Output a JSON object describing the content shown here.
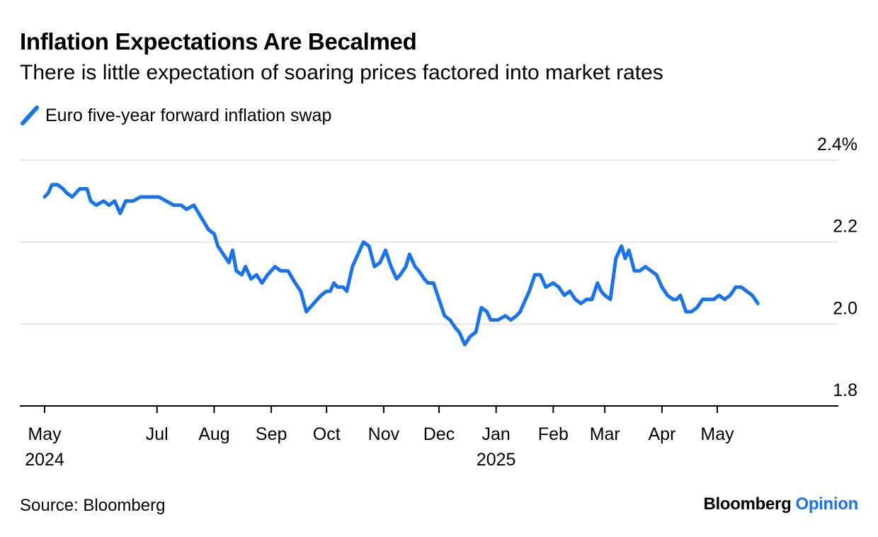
{
  "header": {
    "title": "Inflation Expectations Are Becalmed",
    "subtitle": "There is little expectation of soaring prices factored into market rates"
  },
  "footer": {
    "source": "Source: Bloomberg",
    "brand_primary": "Bloomberg",
    "brand_secondary": "Opinion"
  },
  "colors": {
    "series": "#1a73e8",
    "grid": "#e6e6e6",
    "axis": "#000000"
  },
  "chart_data": {
    "type": "line",
    "title": "Inflation Expectations Are Becalmed",
    "subtitle": "There is little expectation of soaring prices factored into market rates",
    "xlabel": "",
    "ylabel": "",
    "ylim": [
      1.8,
      2.4
    ],
    "y_ticks": [
      {
        "value": 2.4,
        "label": "2.4%"
      },
      {
        "value": 2.2,
        "label": "2.2"
      },
      {
        "value": 2.0,
        "label": "2.0"
      },
      {
        "value": 1.8,
        "label": "1.8"
      }
    ],
    "x_ticks": [
      {
        "date": "2024-05-01",
        "label": "May",
        "year": "2024"
      },
      {
        "date": "2024-07-01",
        "label": "Jul",
        "year": ""
      },
      {
        "date": "2024-08-01",
        "label": "Aug",
        "year": ""
      },
      {
        "date": "2024-09-01",
        "label": "Sep",
        "year": ""
      },
      {
        "date": "2024-10-01",
        "label": "Oct",
        "year": ""
      },
      {
        "date": "2024-11-01",
        "label": "Nov",
        "year": ""
      },
      {
        "date": "2024-12-01",
        "label": "Dec",
        "year": ""
      },
      {
        "date": "2025-01-01",
        "label": "Jan",
        "year": "2025"
      },
      {
        "date": "2025-02-01",
        "label": "Feb",
        "year": ""
      },
      {
        "date": "2025-03-01",
        "label": "Mar",
        "year": ""
      },
      {
        "date": "2025-04-01",
        "label": "Apr",
        "year": ""
      },
      {
        "date": "2025-05-01",
        "label": "May",
        "year": ""
      }
    ],
    "grid": true,
    "legend_position": "top-left",
    "series": [
      {
        "name": "Euro five-year forward inflation swap",
        "color": "#1a73e8",
        "points": [
          [
            "2024-05-01",
            2.31
          ],
          [
            "2024-05-03",
            2.32
          ],
          [
            "2024-05-05",
            2.34
          ],
          [
            "2024-05-08",
            2.34
          ],
          [
            "2024-05-11",
            2.33
          ],
          [
            "2024-05-13",
            2.32
          ],
          [
            "2024-05-16",
            2.31
          ],
          [
            "2024-05-20",
            2.33
          ],
          [
            "2024-05-24",
            2.33
          ],
          [
            "2024-05-26",
            2.3
          ],
          [
            "2024-05-29",
            2.29
          ],
          [
            "2024-06-02",
            2.3
          ],
          [
            "2024-06-05",
            2.29
          ],
          [
            "2024-06-08",
            2.3
          ],
          [
            "2024-06-11",
            2.27
          ],
          [
            "2024-06-14",
            2.3
          ],
          [
            "2024-06-18",
            2.3
          ],
          [
            "2024-06-22",
            2.31
          ],
          [
            "2024-06-27",
            2.31
          ],
          [
            "2024-07-02",
            2.31
          ],
          [
            "2024-07-06",
            2.3
          ],
          [
            "2024-07-10",
            2.29
          ],
          [
            "2024-07-14",
            2.29
          ],
          [
            "2024-07-17",
            2.28
          ],
          [
            "2024-07-21",
            2.29
          ],
          [
            "2024-07-25",
            2.26
          ],
          [
            "2024-07-29",
            2.23
          ],
          [
            "2024-08-01",
            2.22
          ],
          [
            "2024-08-03",
            2.19
          ],
          [
            "2024-08-06",
            2.17
          ],
          [
            "2024-08-09",
            2.15
          ],
          [
            "2024-08-11",
            2.18
          ],
          [
            "2024-08-13",
            2.13
          ],
          [
            "2024-08-16",
            2.12
          ],
          [
            "2024-08-18",
            2.14
          ],
          [
            "2024-08-21",
            2.11
          ],
          [
            "2024-08-24",
            2.12
          ],
          [
            "2024-08-27",
            2.1
          ],
          [
            "2024-08-30",
            2.12
          ],
          [
            "2024-09-03",
            2.14
          ],
          [
            "2024-09-06",
            2.13
          ],
          [
            "2024-09-10",
            2.13
          ],
          [
            "2024-09-14",
            2.1
          ],
          [
            "2024-09-17",
            2.08
          ],
          [
            "2024-09-20",
            2.03
          ],
          [
            "2024-09-24",
            2.05
          ],
          [
            "2024-09-26",
            2.06
          ],
          [
            "2024-09-28",
            2.07
          ],
          [
            "2024-10-01",
            2.08
          ],
          [
            "2024-10-03",
            2.08
          ],
          [
            "2024-10-05",
            2.1
          ],
          [
            "2024-10-07",
            2.09
          ],
          [
            "2024-10-10",
            2.09
          ],
          [
            "2024-10-12",
            2.08
          ],
          [
            "2024-10-15",
            2.14
          ],
          [
            "2024-10-18",
            2.17
          ],
          [
            "2024-10-21",
            2.2
          ],
          [
            "2024-10-24",
            2.19
          ],
          [
            "2024-10-27",
            2.14
          ],
          [
            "2024-10-30",
            2.15
          ],
          [
            "2024-11-02",
            2.18
          ],
          [
            "2024-11-05",
            2.14
          ],
          [
            "2024-11-08",
            2.11
          ],
          [
            "2024-11-10",
            2.12
          ],
          [
            "2024-11-13",
            2.14
          ],
          [
            "2024-11-15",
            2.17
          ],
          [
            "2024-11-18",
            2.14
          ],
          [
            "2024-11-20",
            2.13
          ],
          [
            "2024-11-23",
            2.11
          ],
          [
            "2024-11-25",
            2.1
          ],
          [
            "2024-11-28",
            2.1
          ],
          [
            "2024-12-01",
            2.06
          ],
          [
            "2024-12-04",
            2.02
          ],
          [
            "2024-12-07",
            2.01
          ],
          [
            "2024-12-10",
            1.99
          ],
          [
            "2024-12-12",
            1.98
          ],
          [
            "2024-12-15",
            1.95
          ],
          [
            "2024-12-18",
            1.97
          ],
          [
            "2024-12-21",
            1.98
          ],
          [
            "2024-12-24",
            2.04
          ],
          [
            "2024-12-27",
            2.03
          ],
          [
            "2024-12-29",
            2.01
          ],
          [
            "2025-01-02",
            2.01
          ],
          [
            "2025-01-06",
            2.02
          ],
          [
            "2025-01-09",
            2.01
          ],
          [
            "2025-01-12",
            2.02
          ],
          [
            "2025-01-14",
            2.03
          ],
          [
            "2025-01-16",
            2.05
          ],
          [
            "2025-01-19",
            2.08
          ],
          [
            "2025-01-22",
            2.12
          ],
          [
            "2025-01-25",
            2.12
          ],
          [
            "2025-01-28",
            2.09
          ],
          [
            "2025-02-01",
            2.1
          ],
          [
            "2025-02-04",
            2.09
          ],
          [
            "2025-02-07",
            2.07
          ],
          [
            "2025-02-10",
            2.08
          ],
          [
            "2025-02-13",
            2.06
          ],
          [
            "2025-02-16",
            2.05
          ],
          [
            "2025-02-19",
            2.06
          ],
          [
            "2025-02-22",
            2.06
          ],
          [
            "2025-02-25",
            2.1
          ],
          [
            "2025-02-27",
            2.08
          ],
          [
            "2025-03-01",
            2.07
          ],
          [
            "2025-03-04",
            2.06
          ],
          [
            "2025-03-07",
            2.16
          ],
          [
            "2025-03-10",
            2.19
          ],
          [
            "2025-03-12",
            2.16
          ],
          [
            "2025-03-14",
            2.18
          ],
          [
            "2025-03-17",
            2.13
          ],
          [
            "2025-03-20",
            2.13
          ],
          [
            "2025-03-23",
            2.14
          ],
          [
            "2025-03-26",
            2.13
          ],
          [
            "2025-03-29",
            2.12
          ],
          [
            "2025-04-01",
            2.09
          ],
          [
            "2025-04-04",
            2.07
          ],
          [
            "2025-04-07",
            2.06
          ],
          [
            "2025-04-09",
            2.06
          ],
          [
            "2025-04-11",
            2.07
          ],
          [
            "2025-04-14",
            2.03
          ],
          [
            "2025-04-17",
            2.03
          ],
          [
            "2025-04-20",
            2.04
          ],
          [
            "2025-04-23",
            2.06
          ],
          [
            "2025-04-26",
            2.06
          ],
          [
            "2025-04-29",
            2.06
          ],
          [
            "2025-05-02",
            2.07
          ],
          [
            "2025-05-05",
            2.06
          ],
          [
            "2025-05-08",
            2.07
          ],
          [
            "2025-05-11",
            2.09
          ],
          [
            "2025-05-14",
            2.09
          ],
          [
            "2025-05-17",
            2.08
          ],
          [
            "2025-05-20",
            2.07
          ],
          [
            "2025-05-23",
            2.05
          ]
        ]
      }
    ]
  }
}
